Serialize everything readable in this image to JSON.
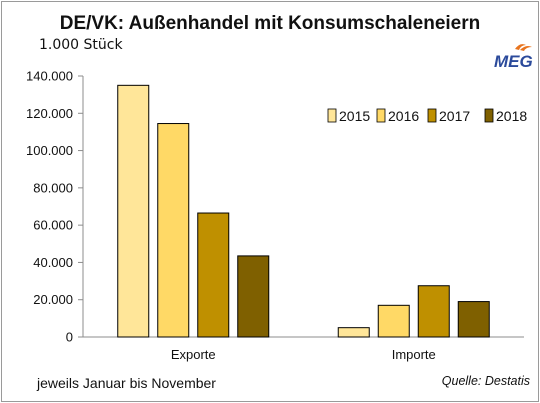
{
  "chart_data": {
    "type": "bar",
    "title": "DE/VK: Außenhandel mit Konsumschaleneiern",
    "unit_label": "1.000 Stück",
    "categories": [
      "Exporte",
      "Importe"
    ],
    "series": [
      {
        "name": "2015",
        "values": [
          135000,
          5000
        ],
        "color": "#FFE699"
      },
      {
        "name": "2016",
        "values": [
          114500,
          17000
        ],
        "color": "#FFD966"
      },
      {
        "name": "2017",
        "values": [
          66500,
          27500
        ],
        "color": "#BF9000"
      },
      {
        "name": "2018",
        "values": [
          43500,
          19000
        ],
        "color": "#7F6000"
      }
    ],
    "ylim": [
      0,
      140000
    ],
    "yticks": [
      0,
      20000,
      40000,
      60000,
      80000,
      100000,
      120000,
      140000
    ],
    "ytick_labels": [
      "0",
      "20.000",
      "40.000",
      "60.000",
      "80.000",
      "100.000",
      "120.000",
      "140.000"
    ],
    "legend_position": "right",
    "grid": false
  },
  "footnote": "jeweils Januar bis November",
  "source": "Quelle: Destatis",
  "logo_text": "MEG",
  "colors": {
    "logo_blue": "#2B4A9B",
    "logo_orange": "#E8741E"
  }
}
